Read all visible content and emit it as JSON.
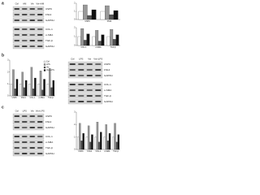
{
  "panels": [
    {
      "label": "a",
      "lanes": [
        "Ctrl",
        "AM",
        "Vie",
        "Vie+AM"
      ],
      "blots": [
        [
          "USP9",
          "FN14",
          "GAPDH"
        ],
        [
          "COL-1",
          "α-SMA",
          "TGF-β",
          "GAPDH"
        ]
      ],
      "charts": [
        {
          "type": "bar",
          "categories": [
            "USP9",
            "FN14"
          ],
          "series": [
            {
              "name": "Ctrl",
              "color": "#ffffff",
              "values": [
                1,
                1
              ]
            },
            {
              "name": "AM",
              "color": "#999999",
              "values": [
                1.8,
                1.7
              ]
            },
            {
              "name": "Vie",
              "color": "#555555",
              "values": [
                0.5,
                0.6
              ]
            },
            {
              "name": "Vie+AM",
              "color": "#111111",
              "values": [
                1.2,
                1.1
              ]
            }
          ],
          "ylim": [
            0,
            2
          ],
          "yticks": [
            0,
            1,
            2
          ]
        },
        {
          "type": "bar",
          "categories": [
            "COL-1",
            "α-SMA",
            "TGF-β"
          ],
          "series": [
            {
              "name": "Ctrl",
              "color": "#ffffff",
              "values": [
                1,
                1,
                1
              ]
            },
            {
              "name": "AM",
              "color": "#999999",
              "values": [
                1.9,
                1.7,
                1.8
              ]
            },
            {
              "name": "Vie",
              "color": "#555555",
              "values": [
                0.6,
                0.5,
                0.7
              ]
            },
            {
              "name": "Vie+AM",
              "color": "#111111",
              "values": [
                1.3,
                1.2,
                1.2
              ]
            }
          ],
          "ylim": [
            0,
            2
          ],
          "yticks": [
            0,
            1,
            2
          ]
        }
      ]
    },
    {
      "label": "b",
      "lanes": [
        "Ctrl",
        "LPS",
        "Vie",
        "Vie+LPS"
      ],
      "blots": [
        [
          "USP9",
          "FN14",
          "GAPDH"
        ],
        [
          "COL-1",
          "α-SMA",
          "TGF-β",
          "GAPDH"
        ]
      ],
      "charts": [
        {
          "type": "bar",
          "legend": true,
          "categories": [
            "USP9",
            "FN14",
            "COL-1",
            "α-SMA",
            "TGF-β"
          ],
          "series": [
            {
              "name": "Ctrl",
              "color": "#ffffff",
              "values": [
                1,
                1,
                1,
                1,
                1
              ]
            },
            {
              "name": "LPS",
              "color": "#999999",
              "values": [
                2.2,
                2,
                2.4,
                2.1,
                2.3
              ]
            },
            {
              "name": "Vie",
              "color": "#555555",
              "values": [
                0.6,
                0.7,
                0.6,
                0.5,
                0.7
              ]
            },
            {
              "name": "Vie+LPS",
              "color": "#111111",
              "values": [
                1.4,
                1.3,
                1.5,
                1.4,
                1.3
              ]
            }
          ],
          "ylim": [
            0,
            3
          ],
          "yticks": [
            0,
            1,
            2,
            3
          ]
        }
      ]
    },
    {
      "label": "c",
      "lanes": [
        "Ctrl",
        "LPS",
        "Vie",
        "Vie+LPS"
      ],
      "blots": [
        [
          "USP9",
          "FN14",
          "GAPDH"
        ],
        [
          "COL-1",
          "α-SMA",
          "TGF-β",
          "GAPDH"
        ]
      ],
      "charts": [
        {
          "type": "bar",
          "categories": [
            "USP9",
            "FN14",
            "COL-1",
            "α-SMA",
            "TGF-β"
          ],
          "series": [
            {
              "name": "Ctrl",
              "color": "#ffffff",
              "values": [
                1,
                1,
                1,
                1,
                1
              ]
            },
            {
              "name": "LPS",
              "color": "#999999",
              "values": [
                2.1,
                1.9,
                2.2,
                2,
                2.1
              ]
            },
            {
              "name": "Vie",
              "color": "#555555",
              "values": [
                0.7,
                0.6,
                0.6,
                0.7,
                0.6
              ]
            },
            {
              "name": "Vie+LPS",
              "color": "#111111",
              "values": [
                1.3,
                1.2,
                1.4,
                1.3,
                1.2
              ]
            }
          ],
          "ylim": [
            0,
            3
          ],
          "yticks": [
            0,
            1,
            2,
            3
          ]
        }
      ]
    }
  ]
}
